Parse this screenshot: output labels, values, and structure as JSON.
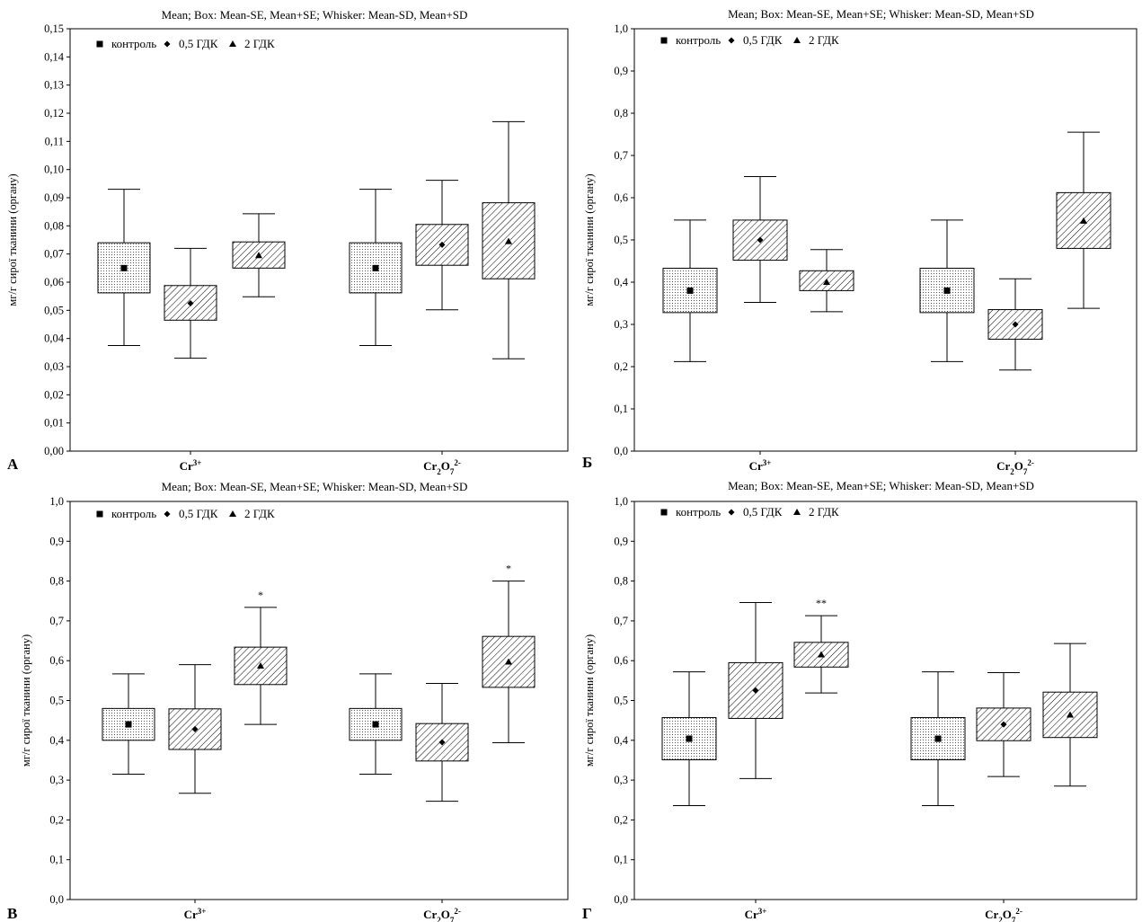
{
  "colors": {
    "ink": "#000000",
    "background": "#ffffff",
    "plot_bg": "#ffffff"
  },
  "chart_data": [
    {
      "type": "box",
      "panel": "А",
      "title": "Mean;  Box: Mean-SE, Mean+SE;  Whisker: Mean-SD, Mean+SD",
      "ylabel": "мг/г сирої тканини (органу)",
      "ylim": [
        0,
        0.15
      ],
      "yticks": [
        0.0,
        0.01,
        0.02,
        0.03,
        0.04,
        0.05,
        0.06,
        0.07,
        0.08,
        0.09,
        0.1,
        0.11,
        0.12,
        0.13,
        0.14,
        0.15
      ],
      "ytick_labels": [
        "0,00",
        "0,01",
        "0,02",
        "0,03",
        "0,04",
        "0,05",
        "0,06",
        "0,07",
        "0,08",
        "0,09",
        "0,10",
        "0,11",
        "0,12",
        "0,13",
        "0,14",
        "0,15"
      ],
      "legend": [
        "контроль",
        "0,5 ГДК",
        "2 ГДК"
      ],
      "legend_position": "top-left",
      "categories": [
        {
          "base": "Cr",
          "sup": "3+"
        },
        {
          "base": "Cr",
          "sub": "2",
          "mid": "O",
          "sub2": "7",
          "sup": "2-"
        }
      ],
      "series": [
        {
          "name": "контроль",
          "marker": "square",
          "pattern": "dots",
          "data": [
            {
              "mean": 0.065,
              "box": [
                0.0562,
                0.074
              ],
              "whisker": [
                0.0375,
                0.093
              ]
            },
            {
              "mean": 0.065,
              "box": [
                0.0562,
                0.074
              ],
              "whisker": [
                0.0375,
                0.093
              ]
            }
          ]
        },
        {
          "name": "0,5 ГДК",
          "marker": "diamond",
          "pattern": "hatch",
          "data": [
            {
              "mean": 0.0525,
              "box": [
                0.0465,
                0.0588
              ],
              "whisker": [
                0.033,
                0.072
              ]
            },
            {
              "mean": 0.0733,
              "box": [
                0.066,
                0.0805
              ],
              "whisker": [
                0.0502,
                0.0962
              ]
            }
          ]
        },
        {
          "name": "2 ГДК",
          "marker": "triangle",
          "pattern": "hatch",
          "data": [
            {
              "mean": 0.0695,
              "box": [
                0.065,
                0.0743
              ],
              "whisker": [
                0.0548,
                0.0843
              ]
            },
            {
              "mean": 0.0745,
              "box": [
                0.0612,
                0.0882
              ],
              "whisker": [
                0.0328,
                0.117
              ]
            }
          ]
        }
      ],
      "annotations": []
    },
    {
      "type": "box",
      "panel": "Б",
      "title": "Mean;  Box: Mean-SE, Mean+SE;  Whisker: Mean-SD, Mean+SD",
      "ylabel": "мг/г сирої тканини (органу)",
      "ylim": [
        0,
        1.0
      ],
      "yticks": [
        0,
        0.1,
        0.2,
        0.3,
        0.4,
        0.5,
        0.6,
        0.7,
        0.8,
        0.9,
        1.0
      ],
      "ytick_labels": [
        "0,0",
        "0,1",
        "0,2",
        "0,3",
        "0,4",
        "0,5",
        "0,6",
        "0,7",
        "0,8",
        "0,9",
        "1,0"
      ],
      "legend": [
        "контроль",
        "0,5 ГДК",
        "2 ГДК"
      ],
      "legend_position": "top-left",
      "categories": [
        {
          "base": "Cr",
          "sup": "3+"
        },
        {
          "base": "Cr",
          "sub": "2",
          "mid": "O",
          "sub2": "7",
          "sup": "2-"
        }
      ],
      "series": [
        {
          "name": "контроль",
          "marker": "square",
          "pattern": "dots",
          "data": [
            {
              "mean": 0.38,
              "box": [
                0.328,
                0.433
              ],
              "whisker": [
                0.212,
                0.547
              ]
            },
            {
              "mean": 0.38,
              "box": [
                0.328,
                0.433
              ],
              "whisker": [
                0.212,
                0.547
              ]
            }
          ]
        },
        {
          "name": "0,5 ГДК",
          "marker": "diamond",
          "pattern": "hatch",
          "data": [
            {
              "mean": 0.5,
              "box": [
                0.452,
                0.547
              ],
              "whisker": [
                0.352,
                0.65
              ]
            },
            {
              "mean": 0.3,
              "box": [
                0.265,
                0.335
              ],
              "whisker": [
                0.192,
                0.408
              ]
            }
          ]
        },
        {
          "name": "2 ГДК",
          "marker": "triangle",
          "pattern": "hatch",
          "data": [
            {
              "mean": 0.4,
              "box": [
                0.38,
                0.427
              ],
              "whisker": [
                0.33,
                0.477
              ]
            },
            {
              "mean": 0.545,
              "box": [
                0.48,
                0.612
              ],
              "whisker": [
                0.338,
                0.755
              ]
            }
          ]
        }
      ],
      "annotations": []
    },
    {
      "type": "box",
      "panel": "В",
      "title": "Mean;  Box: Mean-SE, Mean+SE;  Whisker: Mean-SD, Mean+SD",
      "ylabel": "мг/г сирої тканини (органу)",
      "ylim": [
        0,
        1.0
      ],
      "yticks": [
        0,
        0.1,
        0.2,
        0.3,
        0.4,
        0.5,
        0.6,
        0.7,
        0.8,
        0.9,
        1.0
      ],
      "ytick_labels": [
        "0,0",
        "0,1",
        "0,2",
        "0,3",
        "0,4",
        "0,5",
        "0,6",
        "0,7",
        "0,8",
        "0,9",
        "1,0"
      ],
      "legend": [
        "контроль",
        "0,5 ГДК",
        "2 ГДК"
      ],
      "legend_position": "top-left",
      "categories": [
        {
          "base": "Cr",
          "sup": "3+"
        },
        {
          "base": "Cr",
          "sub": "2",
          "mid": "O",
          "sub2": "7",
          "sup": "2-"
        }
      ],
      "series": [
        {
          "name": "контроль",
          "marker": "square",
          "pattern": "dots",
          "data": [
            {
              "mean": 0.44,
              "box": [
                0.4,
                0.48
              ],
              "whisker": [
                0.315,
                0.567
              ]
            },
            {
              "mean": 0.44,
              "box": [
                0.4,
                0.48
              ],
              "whisker": [
                0.315,
                0.567
              ]
            }
          ]
        },
        {
          "name": "0,5 ГДК",
          "marker": "diamond",
          "pattern": "hatch",
          "data": [
            {
              "mean": 0.428,
              "box": [
                0.377,
                0.479
              ],
              "whisker": [
                0.267,
                0.59
              ]
            },
            {
              "mean": 0.395,
              "box": [
                0.348,
                0.442
              ],
              "whisker": [
                0.247,
                0.543
              ]
            }
          ]
        },
        {
          "name": "2 ГДК",
          "marker": "triangle",
          "pattern": "hatch",
          "data": [
            {
              "mean": 0.587,
              "box": [
                0.54,
                0.634
              ],
              "whisker": [
                0.44,
                0.734
              ]
            },
            {
              "mean": 0.597,
              "box": [
                0.533,
                0.661
              ],
              "whisker": [
                0.394,
                0.8
              ]
            }
          ]
        }
      ],
      "annotations": [
        {
          "category": 0,
          "series": 2,
          "text": "*"
        },
        {
          "category": 1,
          "series": 2,
          "text": "*"
        }
      ]
    },
    {
      "type": "box",
      "panel": "Г",
      "title": "Mean;  Box: Mean-SE, Mean+SE;  Whisker: Mean-SD, Mean+SD",
      "ylabel": "мг/г сирої тканини (органу)",
      "ylim": [
        0,
        1.0
      ],
      "yticks": [
        0,
        0.1,
        0.2,
        0.3,
        0.4,
        0.5,
        0.6,
        0.7,
        0.8,
        0.9,
        1.0
      ],
      "ytick_labels": [
        "0,0",
        "0,1",
        "0,2",
        "0,3",
        "0,4",
        "0,5",
        "0,6",
        "0,7",
        "0,8",
        "0,9",
        "1,0"
      ],
      "legend": [
        "контроль",
        "0,5 ГДК",
        "2 ГДК"
      ],
      "legend_position": "top-left",
      "categories": [
        {
          "base": "Cr",
          "sup": "3+"
        },
        {
          "base": "Cr",
          "sub": "2",
          "mid": "O",
          "sub2": "7",
          "sup": "2-"
        }
      ],
      "series": [
        {
          "name": "контроль",
          "marker": "square",
          "pattern": "dots",
          "data": [
            {
              "mean": 0.404,
              "box": [
                0.351,
                0.457
              ],
              "whisker": [
                0.236,
                0.572
              ]
            },
            {
              "mean": 0.404,
              "box": [
                0.351,
                0.457
              ],
              "whisker": [
                0.236,
                0.572
              ]
            }
          ]
        },
        {
          "name": "0,5 ГДК",
          "marker": "diamond",
          "pattern": "hatch",
          "data": [
            {
              "mean": 0.525,
              "box": [
                0.455,
                0.595
              ],
              "whisker": [
                0.304,
                0.746
              ]
            },
            {
              "mean": 0.44,
              "box": [
                0.399,
                0.481
              ],
              "whisker": [
                0.309,
                0.57
              ]
            }
          ]
        },
        {
          "name": "2 ГДК",
          "marker": "triangle",
          "pattern": "hatch",
          "data": [
            {
              "mean": 0.615,
              "box": [
                0.584,
                0.646
              ],
              "whisker": [
                0.519,
                0.713
              ]
            },
            {
              "mean": 0.464,
              "box": [
                0.407,
                0.521
              ],
              "whisker": [
                0.285,
                0.643
              ]
            }
          ]
        }
      ],
      "annotations": [
        {
          "category": 0,
          "series": 2,
          "text": "**"
        }
      ]
    }
  ]
}
